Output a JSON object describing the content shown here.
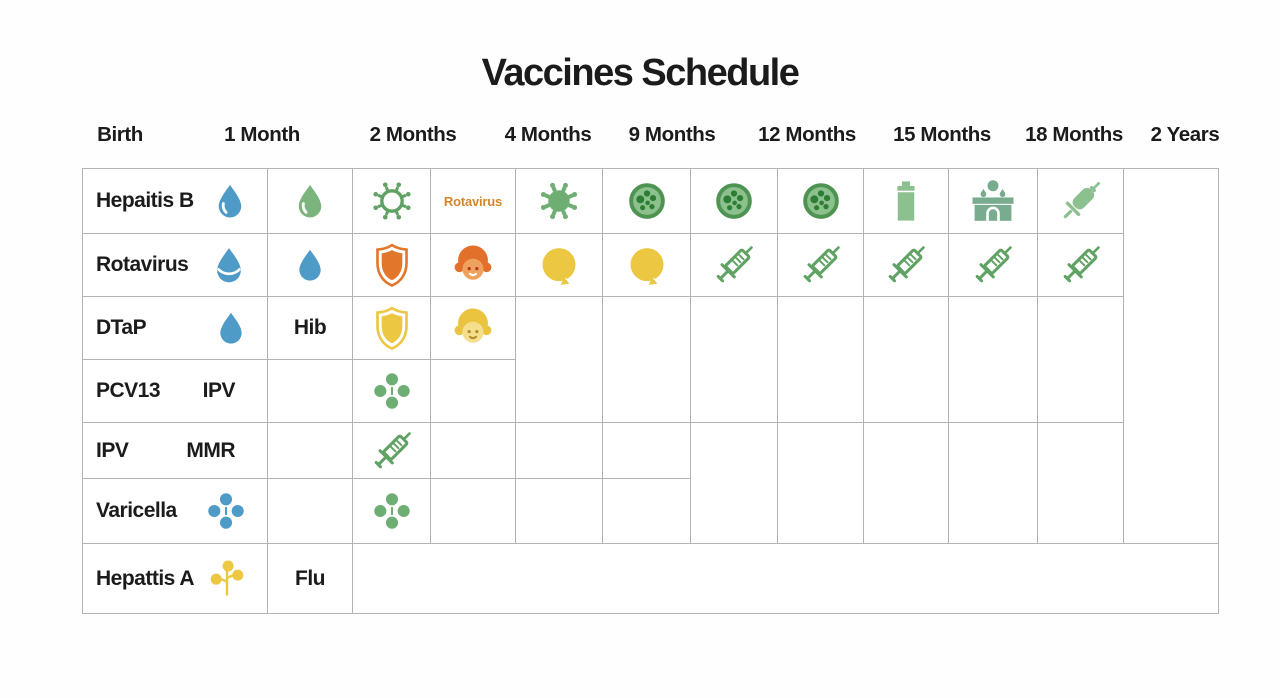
{
  "title": "Vaccines Schedule",
  "header": {
    "labels": [
      "Birth",
      "1 Month",
      "2 Months",
      "4 Months",
      "9 Months",
      "12 Months",
      "15 Months",
      "18 Months",
      "2 Years"
    ]
  },
  "palette": {
    "blue": "#4E9BC8",
    "green": "#6FAE72",
    "green_drop": "#7BB47D",
    "green_line": "#5FA263",
    "light_green": "#8CC08F",
    "teal_green": "#79AC8E",
    "orange": "#E2772B",
    "yellow": "#EBC742",
    "note_orange": "#D4872A",
    "dish_fill": "#8CC18E",
    "dish_ring": "#4E9351",
    "dish_dot": "#2F7D34",
    "orange_hair": "#E2702A",
    "orange_skin": "#EFA25D",
    "yellow_hair": "#EAC43F",
    "yellow_skin": "#F5DF8F",
    "grid_line": "#B3B3B3",
    "text": "#1B1B1B"
  },
  "chart_data": {
    "type": "table",
    "title": "Vaccines Schedule",
    "columns": [
      "Birth",
      "1 Month",
      "2 Months",
      "4 Months",
      "9 Months",
      "12 Months",
      "15 Months",
      "18 Months",
      "2 Years"
    ],
    "rows": [
      "Hepaitis B",
      "Rotavirus",
      "DTaP",
      "PCV13 / IPV",
      "IPV / MMR",
      "Varicella",
      "Hepattis A / Flu"
    ],
    "notes": "Infographic-style schedule; cells hold pictograms (droplets, viruses, shields, faces, syringes, clovers) rather than numeric values"
  },
  "table": {
    "cells": [
      {
        "r": 1,
        "c": 1,
        "kind": "label",
        "text": "Hepaitis B",
        "icon": "droplet_hl",
        "color": "blue"
      },
      {
        "r": 1,
        "c": 2,
        "kind": "icon",
        "icon": "droplet_hl",
        "color": "green_drop"
      },
      {
        "r": 1,
        "c": 3,
        "kind": "icon",
        "icon": "virus_outline",
        "color": "green_line"
      },
      {
        "r": 1,
        "c": 4,
        "kind": "note",
        "text": "Rotavirus"
      },
      {
        "r": 1,
        "c": 5,
        "kind": "icon",
        "icon": "virus_solid",
        "color": "green"
      },
      {
        "r": 1,
        "c": 6,
        "kind": "icon",
        "icon": "dish"
      },
      {
        "r": 1,
        "c": 7,
        "kind": "icon",
        "icon": "dish"
      },
      {
        "r": 1,
        "c": 8,
        "kind": "icon",
        "icon": "dish"
      },
      {
        "r": 1,
        "c": 9,
        "kind": "icon",
        "icon": "canister",
        "color": "light_green"
      },
      {
        "r": 1,
        "c": 10,
        "kind": "icon",
        "icon": "clinic",
        "color": "teal_green"
      },
      {
        "r": 1,
        "c": 11,
        "kind": "icon",
        "icon": "syringe_solid",
        "color": "light_green"
      },
      {
        "r": 2,
        "c": 1,
        "kind": "label",
        "text": "Rotavirus",
        "icon": "droplet_double",
        "color": "blue"
      },
      {
        "r": 2,
        "c": 2,
        "kind": "icon",
        "icon": "droplet",
        "color": "blue"
      },
      {
        "r": 2,
        "c": 3,
        "kind": "icon",
        "icon": "shield",
        "color": "orange"
      },
      {
        "r": 2,
        "c": 4,
        "kind": "icon",
        "icon": "face_orange"
      },
      {
        "r": 2,
        "c": 5,
        "kind": "icon",
        "icon": "blob",
        "color": "yellow"
      },
      {
        "r": 2,
        "c": 6,
        "kind": "icon",
        "icon": "blob",
        "color": "yellow"
      },
      {
        "r": 2,
        "c": 7,
        "kind": "icon",
        "icon": "syringe_outline",
        "color": "green_line"
      },
      {
        "r": 2,
        "c": 8,
        "kind": "icon",
        "icon": "syringe_outline",
        "color": "green_line"
      },
      {
        "r": 2,
        "c": 9,
        "kind": "icon",
        "icon": "syringe_outline",
        "color": "green_line"
      },
      {
        "r": 2,
        "c": 10,
        "kind": "icon",
        "icon": "syringe_outline",
        "color": "green_line"
      },
      {
        "r": 2,
        "c": 11,
        "kind": "icon",
        "icon": "syringe_outline",
        "color": "green_line"
      },
      {
        "r": 3,
        "c": 1,
        "kind": "label",
        "text": "DTaP",
        "icon": "droplet",
        "color": "blue"
      },
      {
        "r": 3,
        "c": 2,
        "kind": "text",
        "text": "Hib"
      },
      {
        "r": 3,
        "c": 3,
        "kind": "icon",
        "icon": "shield",
        "color": "yellow"
      },
      {
        "r": 3,
        "c": 4,
        "kind": "icon",
        "icon": "face_yellow"
      },
      {
        "r": 3,
        "c": 5,
        "rs": 2,
        "kind": "empty"
      },
      {
        "r": 3,
        "c": 6,
        "rs": 2,
        "kind": "empty"
      },
      {
        "r": 3,
        "c": 7,
        "rs": 2,
        "kind": "empty"
      },
      {
        "r": 3,
        "c": 8,
        "rs": 2,
        "kind": "empty"
      },
      {
        "r": 3,
        "c": 9,
        "rs": 2,
        "kind": "empty"
      },
      {
        "r": 3,
        "c": 10,
        "rs": 2,
        "kind": "empty"
      },
      {
        "r": 3,
        "c": 11,
        "rs": 2,
        "kind": "empty"
      },
      {
        "r": 4,
        "c": 1,
        "kind": "label2",
        "texts": [
          "PCV13",
          "IPV"
        ]
      },
      {
        "r": 4,
        "c": 2,
        "kind": "empty"
      },
      {
        "r": 4,
        "c": 3,
        "kind": "icon",
        "icon": "clover",
        "color": "green"
      },
      {
        "r": 4,
        "c": 4,
        "kind": "empty"
      },
      {
        "r": 5,
        "c": 1,
        "kind": "label2",
        "texts": [
          "IPV",
          "MMR"
        ]
      },
      {
        "r": 5,
        "c": 2,
        "kind": "empty"
      },
      {
        "r": 5,
        "c": 3,
        "kind": "icon",
        "icon": "syringe_outline",
        "color": "green_line"
      },
      {
        "r": 5,
        "c": 4,
        "kind": "empty"
      },
      {
        "r": 5,
        "c": 5,
        "kind": "empty"
      },
      {
        "r": 5,
        "c": 6,
        "kind": "empty"
      },
      {
        "r": 5,
        "c": 7,
        "rs": 2,
        "kind": "empty"
      },
      {
        "r": 5,
        "c": 8,
        "rs": 2,
        "kind": "empty"
      },
      {
        "r": 5,
        "c": 9,
        "rs": 2,
        "kind": "empty"
      },
      {
        "r": 5,
        "c": 10,
        "rs": 2,
        "kind": "empty"
      },
      {
        "r": 5,
        "c": 11,
        "rs": 2,
        "kind": "empty"
      },
      {
        "r": 6,
        "c": 1,
        "kind": "label",
        "text": "Varicella",
        "icon": "clover",
        "color": "blue"
      },
      {
        "r": 6,
        "c": 2,
        "kind": "empty"
      },
      {
        "r": 6,
        "c": 3,
        "kind": "icon",
        "icon": "clover",
        "color": "green"
      },
      {
        "r": 6,
        "c": 4,
        "kind": "empty"
      },
      {
        "r": 6,
        "c": 5,
        "kind": "empty"
      },
      {
        "r": 6,
        "c": 6,
        "kind": "empty"
      },
      {
        "r": 1,
        "c": 12,
        "rs": 6,
        "kind": "empty"
      },
      {
        "r": 7,
        "c": 1,
        "kind": "label",
        "text": "Hepattis A",
        "icon": "sprout",
        "color": "yellow"
      },
      {
        "r": 7,
        "c": 2,
        "kind": "text",
        "text": "Flu"
      },
      {
        "r": 7,
        "c": 3,
        "cs": 10,
        "kind": "empty"
      }
    ]
  }
}
